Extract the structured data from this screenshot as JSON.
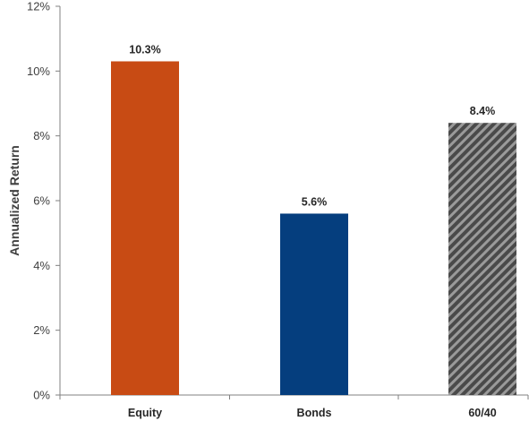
{
  "chart_data": {
    "type": "bar",
    "title": "",
    "xlabel": "",
    "ylabel": "Annualized Return",
    "categories": [
      "Equity",
      "Bonds",
      "60/40"
    ],
    "values": [
      10.3,
      5.6,
      8.4
    ],
    "data_labels": [
      "10.3%",
      "5.6%",
      "8.4%"
    ],
    "ylim": [
      0,
      12
    ],
    "yticks": [
      0,
      2,
      4,
      6,
      8,
      10,
      12
    ],
    "ytick_labels": [
      "0%",
      "2%",
      "4%",
      "6%",
      "8%",
      "10%",
      "12%"
    ],
    "grid": false,
    "legend": "none",
    "bar_styles": [
      {
        "fill": "#c84b14"
      },
      {
        "fill": "#053e7e"
      },
      {
        "fill": "#4a4a4a",
        "pattern": "diagonal-stripes",
        "stripe": "#9a9a9a"
      }
    ]
  }
}
